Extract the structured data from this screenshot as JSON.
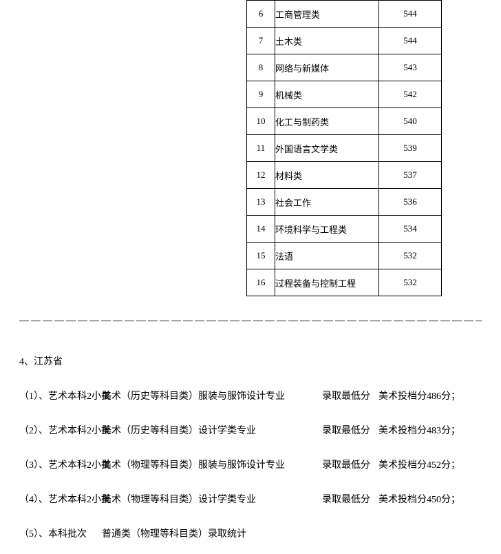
{
  "table": {
    "rows": [
      {
        "idx": "6",
        "name": "工商管理类",
        "score": "544"
      },
      {
        "idx": "7",
        "name": "土木类",
        "score": "544"
      },
      {
        "idx": "8",
        "name": "网络与新媒体",
        "score": "543"
      },
      {
        "idx": "9",
        "name": "机械类",
        "score": "542"
      },
      {
        "idx": "10",
        "name": "化工与制药类",
        "score": "540"
      },
      {
        "idx": "11",
        "name": "外国语言文学类",
        "score": "539"
      },
      {
        "idx": "12",
        "name": "材料类",
        "score": "537"
      },
      {
        "idx": "13",
        "name": "社会工作",
        "score": "536"
      },
      {
        "idx": "14",
        "name": "环境科学与工程类",
        "score": "534"
      },
      {
        "idx": "15",
        "name": "法语",
        "score": "532"
      },
      {
        "idx": "16",
        "name": "过程装备与控制工程",
        "score": "532"
      }
    ]
  },
  "divider": "——————————————————————————————————————————",
  "section": "4、江苏省",
  "lines": [
    {
      "num": "（1）、艺术本科2小批",
      "cat": "美术（历史等科目类）服装与服饰设计专业",
      "min": "录取最低分",
      "score": "美术投档分486分；"
    },
    {
      "num": "（2）、艺术本科2小批",
      "cat": "美术（历史等科目类）设计学类专业",
      "min": "录取最低分",
      "score": "美术投档分483分；"
    },
    {
      "num": "（3）、艺术本科2小批",
      "cat": "美术（物理等科目类）服装与服饰设计专业",
      "min": "录取最低分",
      "score": "美术投档分452分；"
    },
    {
      "num": "（4）、艺术本科2小批",
      "cat": "美术（物理等科目类）设计学类专业",
      "min": "录取最低分",
      "score": "美术投档分450分；"
    },
    {
      "num": "（5）、本科批次",
      "cat": "普通类（物理等科目类）录取统计",
      "min": "",
      "score": ""
    }
  ]
}
